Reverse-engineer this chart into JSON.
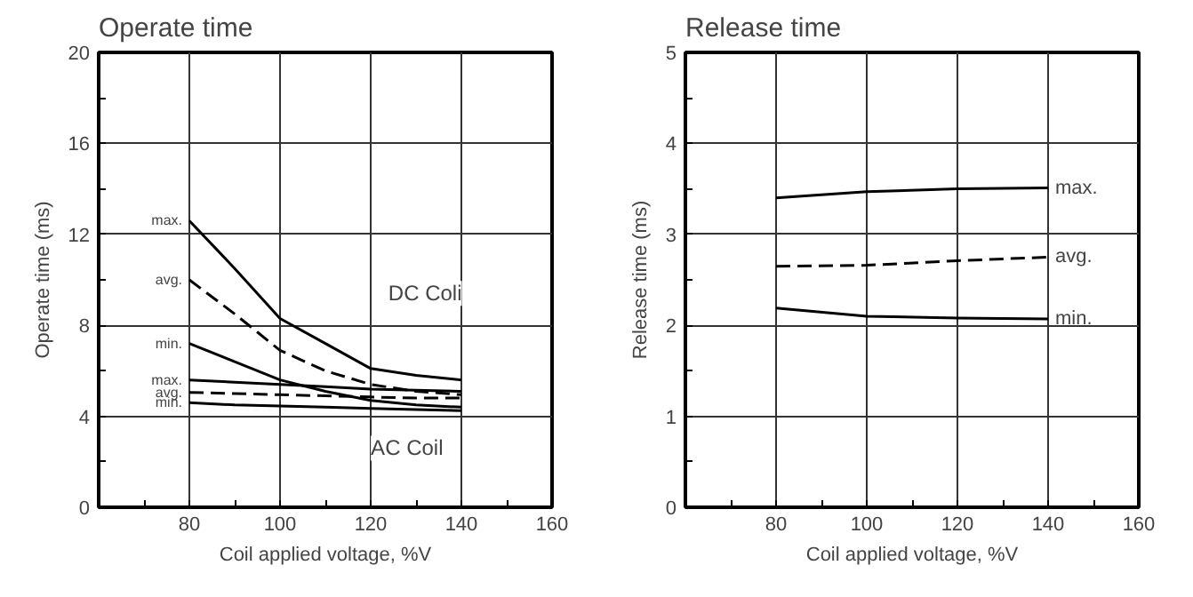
{
  "chart_data": [
    {
      "type": "line",
      "title": "Operate time",
      "xlabel": "Coil applied voltage, %V",
      "ylabel": "Operate time (ms)",
      "xlim": [
        60,
        160
      ],
      "xticks": [
        {
          "value": 70,
          "label": null
        },
        80,
        {
          "value": 90,
          "label": null
        },
        100,
        {
          "value": 110,
          "label": null
        },
        120,
        {
          "value": 130,
          "label": null
        },
        140,
        {
          "value": 150,
          "label": null
        },
        160
      ],
      "ylim": [
        0,
        20
      ],
      "yticks": [
        0,
        {
          "value": 2,
          "label": null
        },
        4,
        {
          "value": 6,
          "label": null
        },
        8,
        {
          "value": 10,
          "label": null
        },
        12,
        {
          "value": 14,
          "label": null
        },
        16,
        {
          "value": 18,
          "label": null
        },
        20
      ],
      "grid": true,
      "x": [
        80,
        90,
        100,
        110,
        120,
        130,
        140
      ],
      "series": [
        {
          "name": "max.",
          "color": "#000000",
          "line_style": "solid",
          "values": [
            12.6,
            10.5,
            8.3,
            7.2,
            6.1,
            5.8,
            5.6
          ]
        },
        {
          "name": "avg.",
          "color": "#000000",
          "line_style": "dashed",
          "values": [
            10.0,
            8.5,
            6.9,
            6.0,
            5.4,
            5.1,
            4.95
          ]
        },
        {
          "name": "min.",
          "color": "#000000",
          "line_style": "solid",
          "values": [
            7.2,
            6.4,
            5.6,
            5.1,
            4.7,
            4.5,
            4.4
          ]
        },
        {
          "name": "max.",
          "color": "#000000",
          "line_style": "solid",
          "values": [
            5.6,
            5.5,
            5.4,
            5.3,
            5.2,
            5.15,
            5.1
          ]
        },
        {
          "name": "avg.",
          "color": "#000000",
          "line_style": "dashed",
          "values": [
            5.05,
            5.0,
            4.95,
            4.9,
            4.85,
            4.8,
            4.8
          ]
        },
        {
          "name": "min.",
          "color": "#000000",
          "line_style": "solid",
          "values": [
            4.6,
            4.5,
            4.45,
            4.4,
            4.35,
            4.3,
            4.25
          ]
        }
      ],
      "annotations": [
        "DC Coli",
        "AC Coil"
      ]
    },
    {
      "type": "line",
      "title": "Release time",
      "xlabel": "Coil applied voltage, %V",
      "ylabel": "Release time (ms)",
      "xlim": [
        60,
        160
      ],
      "xticks": [
        {
          "value": 70,
          "label": null
        },
        80,
        {
          "value": 90,
          "label": null
        },
        100,
        {
          "value": 110,
          "label": null
        },
        120,
        {
          "value": 130,
          "label": null
        },
        140,
        {
          "value": 150,
          "label": null
        },
        160
      ],
      "ylim": [
        0,
        5
      ],
      "yticks": [
        0,
        {
          "value": 0.5,
          "label": null
        },
        1,
        {
          "value": 1.5,
          "label": null
        },
        2,
        {
          "value": 2.5,
          "label": null
        },
        3,
        {
          "value": 3.5,
          "label": null
        },
        4,
        {
          "value": 4.5,
          "label": null
        },
        5
      ],
      "grid": true,
      "x": [
        80,
        100,
        120,
        140
      ],
      "series": [
        {
          "name": "max.",
          "color": "#000000",
          "line_style": "solid",
          "values": [
            3.4,
            3.47,
            3.5,
            3.51
          ]
        },
        {
          "name": "avg.",
          "color": "#000000",
          "line_style": "dashed",
          "values": [
            2.65,
            2.66,
            2.71,
            2.75
          ]
        },
        {
          "name": "min.",
          "color": "#000000",
          "line_style": "solid",
          "values": [
            2.19,
            2.1,
            2.08,
            2.07
          ]
        }
      ]
    }
  ]
}
